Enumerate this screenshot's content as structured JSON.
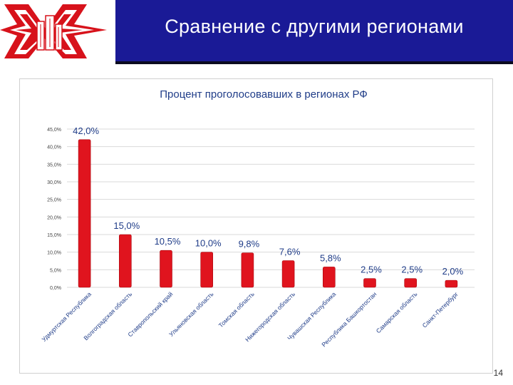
{
  "slide": {
    "title": "Сравнение с другими регионами",
    "page_number": "14"
  },
  "colors": {
    "title_bar": "#1a1a96",
    "bar": "#e0141e",
    "logo_red": "#d7121b"
  },
  "chart_data": {
    "type": "bar",
    "title": "Процент проголосовавших в регионах РФ",
    "categories": [
      "Удмуртская Республика",
      "Волгоградская область",
      "Ставропольский край",
      "Ульяновская область",
      "Томская область",
      "Нижегородская область",
      "Чувашская Республика",
      "Республика Башкортостан",
      "Самарская область",
      "Санкт-Петербург"
    ],
    "values": [
      42.0,
      15.0,
      10.5,
      10.0,
      9.8,
      7.6,
      5.8,
      2.5,
      2.5,
      2.0
    ],
    "data_labels": [
      "42,0%",
      "15,0%",
      "10,5%",
      "10,0%",
      "9,8%",
      "7,6%",
      "5,8%",
      "2,5%",
      "2,5%",
      "2,0%"
    ],
    "yticks": [
      "0,0%",
      "5,0%",
      "10,0%",
      "15,0%",
      "20,0%",
      "25,0%",
      "30,0%",
      "35,0%",
      "40,0%",
      "45,0%"
    ],
    "ylim": [
      0,
      45
    ],
    "grid": true,
    "legend": "none"
  }
}
